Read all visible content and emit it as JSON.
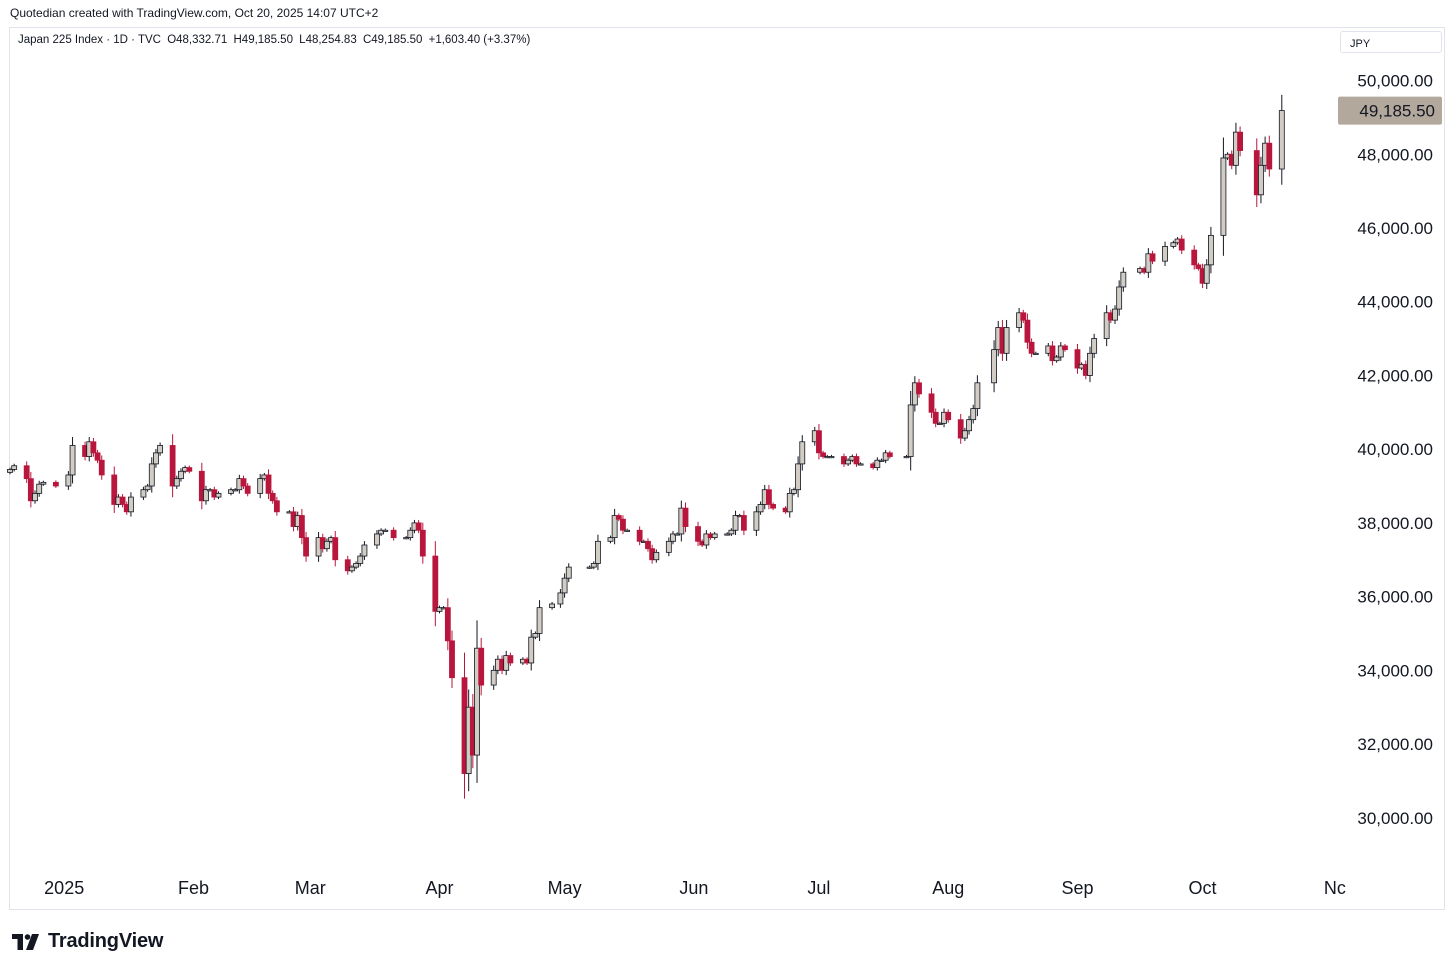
{
  "attribution": "Quotedian created with TradingView.com, Oct 20, 2025 14:07 UTC+2",
  "legend": {
    "symbol": "Japan 225 Index · 1D · TVC",
    "open": "O48,332.71",
    "high": "H49,185.50",
    "low": "L48,254.83",
    "close": "C49,185.50",
    "change": "+1,603.40 (+3.37%)"
  },
  "currency": "JPY",
  "last_price_label": "49,185.50",
  "brand": "TradingView",
  "colors": {
    "up": "#d1ccc4",
    "down": "#b8163c",
    "wick_up": "#131722",
    "wick_down": "#b8163c",
    "last_label_bg": "#b3a89c"
  },
  "chart_data": {
    "type": "candlestick",
    "title": "Japan 225 Index",
    "interval": "1D",
    "ylim": [
      28800,
      51100
    ],
    "y_ticks": [
      30000,
      32000,
      34000,
      36000,
      38000,
      40000,
      42000,
      44000,
      46000,
      48000,
      50000
    ],
    "y_tick_labels": [
      "30,000.00",
      "32,000.00",
      "34,000.00",
      "36,000.00",
      "38,000.00",
      "40,000.00",
      "42,000.00",
      "44,000.00",
      "46,000.00",
      "48,000.00",
      "50,000.00"
    ],
    "x_ticks": [
      {
        "label": "2025",
        "date": "2025-01-01"
      },
      {
        "label": "Feb",
        "date": "2025-02-01"
      },
      {
        "label": "Mar",
        "date": "2025-03-01"
      },
      {
        "label": "Apr",
        "date": "2025-04-01"
      },
      {
        "label": "May",
        "date": "2025-05-01"
      },
      {
        "label": "Jun",
        "date": "2025-06-01"
      },
      {
        "label": "Jul",
        "date": "2025-07-01"
      },
      {
        "label": "Aug",
        "date": "2025-08-01"
      },
      {
        "label": "Sep",
        "date": "2025-09-01"
      },
      {
        "label": "Oct",
        "date": "2025-10-01"
      },
      {
        "label": "Nc",
        "date": "2025-11-01"
      }
    ],
    "xlim": [
      "2024-12-19",
      "2025-11-02"
    ],
    "last_price": 49185.5,
    "closes": [
      [
        "2024-12-19",
        39450
      ],
      [
        "2024-12-20",
        39550
      ],
      [
        "2024-12-23",
        39200
      ],
      [
        "2024-12-24",
        38600
      ],
      [
        "2024-12-25",
        38800
      ],
      [
        "2024-12-26",
        39050
      ],
      [
        "2024-12-27",
        39100
      ],
      [
        "2024-12-30",
        39000
      ],
      [
        "2025-01-02",
        39300
      ],
      [
        "2025-01-03",
        40100
      ],
      [
        "2025-01-06",
        39800
      ],
      [
        "2025-01-07",
        40200
      ],
      [
        "2025-01-08",
        39900
      ],
      [
        "2025-01-09",
        39700
      ],
      [
        "2025-01-10",
        39300
      ],
      [
        "2025-01-13",
        38500
      ],
      [
        "2025-01-14",
        38700
      ],
      [
        "2025-01-15",
        38500
      ],
      [
        "2025-01-16",
        38300
      ],
      [
        "2025-01-17",
        38700
      ],
      [
        "2025-01-20",
        38900
      ],
      [
        "2025-01-21",
        39000
      ],
      [
        "2025-01-22",
        39600
      ],
      [
        "2025-01-23",
        39900
      ],
      [
        "2025-01-24",
        40100
      ],
      [
        "2025-01-27",
        39000
      ],
      [
        "2025-01-28",
        39200
      ],
      [
        "2025-01-29",
        39400
      ],
      [
        "2025-01-30",
        39500
      ],
      [
        "2025-01-31",
        39400
      ],
      [
        "2025-02-03",
        38600
      ],
      [
        "2025-02-04",
        38900
      ],
      [
        "2025-02-05",
        38900
      ],
      [
        "2025-02-06",
        38700
      ],
      [
        "2025-02-07",
        38800
      ],
      [
        "2025-02-10",
        38900
      ],
      [
        "2025-02-11",
        38900
      ],
      [
        "2025-02-12",
        39200
      ],
      [
        "2025-02-13",
        39000
      ],
      [
        "2025-02-14",
        38800
      ],
      [
        "2025-02-17",
        39200
      ],
      [
        "2025-02-18",
        39300
      ],
      [
        "2025-02-19",
        38800
      ],
      [
        "2025-02-20",
        38600
      ],
      [
        "2025-02-21",
        38300
      ],
      [
        "2025-02-24",
        38300
      ],
      [
        "2025-02-25",
        37900
      ],
      [
        "2025-02-26",
        38200
      ],
      [
        "2025-02-27",
        37600
      ],
      [
        "2025-02-28",
        37100
      ],
      [
        "2025-03-03",
        37600
      ],
      [
        "2025-03-04",
        37300
      ],
      [
        "2025-03-05",
        37500
      ],
      [
        "2025-03-06",
        37600
      ],
      [
        "2025-03-07",
        37000
      ],
      [
        "2025-03-10",
        36700
      ],
      [
        "2025-03-11",
        36800
      ],
      [
        "2025-03-12",
        36900
      ],
      [
        "2025-03-13",
        37100
      ],
      [
        "2025-03-14",
        37400
      ],
      [
        "2025-03-17",
        37700
      ],
      [
        "2025-03-18",
        37800
      ],
      [
        "2025-03-19",
        37800
      ],
      [
        "2025-03-21",
        37600
      ],
      [
        "2025-03-24",
        37600
      ],
      [
        "2025-03-25",
        37800
      ],
      [
        "2025-03-26",
        38000
      ],
      [
        "2025-03-27",
        37800
      ],
      [
        "2025-03-28",
        37100
      ],
      [
        "2025-03-31",
        35600
      ],
      [
        "2025-04-01",
        35700
      ],
      [
        "2025-04-02",
        35700
      ],
      [
        "2025-04-03",
        34800
      ],
      [
        "2025-04-04",
        33800
      ],
      [
        "2025-04-07",
        31200
      ],
      [
        "2025-04-08",
        33000
      ],
      [
        "2025-04-09",
        31700
      ],
      [
        "2025-04-10",
        34600
      ],
      [
        "2025-04-11",
        33600
      ],
      [
        "2025-04-14",
        34000
      ],
      [
        "2025-04-15",
        34300
      ],
      [
        "2025-04-16",
        34000
      ],
      [
        "2025-04-17",
        34400
      ],
      [
        "2025-04-18",
        34200
      ],
      [
        "2025-04-21",
        34300
      ],
      [
        "2025-04-22",
        34200
      ],
      [
        "2025-04-23",
        34900
      ],
      [
        "2025-04-24",
        35000
      ],
      [
        "2025-04-25",
        35700
      ],
      [
        "2025-04-28",
        35800
      ],
      [
        "2025-04-30",
        36100
      ],
      [
        "2025-05-01",
        36500
      ],
      [
        "2025-05-02",
        36800
      ],
      [
        "2025-05-07",
        36800
      ],
      [
        "2025-05-08",
        36900
      ],
      [
        "2025-05-09",
        37500
      ],
      [
        "2025-05-12",
        37600
      ],
      [
        "2025-05-13",
        38200
      ],
      [
        "2025-05-14",
        38100
      ],
      [
        "2025-05-15",
        37800
      ],
      [
        "2025-05-16",
        37800
      ],
      [
        "2025-05-19",
        37500
      ],
      [
        "2025-05-20",
        37500
      ],
      [
        "2025-05-21",
        37300
      ],
      [
        "2025-05-22",
        37000
      ],
      [
        "2025-05-23",
        37200
      ],
      [
        "2025-05-26",
        37500
      ],
      [
        "2025-05-27",
        37700
      ],
      [
        "2025-05-28",
        37700
      ],
      [
        "2025-05-29",
        38400
      ],
      [
        "2025-05-30",
        37900
      ],
      [
        "2025-06-02",
        37500
      ],
      [
        "2025-06-03",
        37400
      ],
      [
        "2025-06-04",
        37700
      ],
      [
        "2025-06-05",
        37600
      ],
      [
        "2025-06-06",
        37700
      ],
      [
        "2025-06-09",
        37700
      ],
      [
        "2025-06-10",
        37800
      ],
      [
        "2025-06-11",
        38200
      ],
      [
        "2025-06-12",
        38200
      ],
      [
        "2025-06-13",
        37800
      ],
      [
        "2025-06-16",
        38300
      ],
      [
        "2025-06-17",
        38500
      ],
      [
        "2025-06-18",
        38900
      ],
      [
        "2025-06-19",
        38500
      ],
      [
        "2025-06-20",
        38400
      ],
      [
        "2025-06-23",
        38300
      ],
      [
        "2025-06-24",
        38800
      ],
      [
        "2025-06-25",
        38900
      ],
      [
        "2025-06-26",
        39600
      ],
      [
        "2025-06-27",
        40200
      ],
      [
        "2025-06-30",
        40500
      ],
      [
        "2025-07-01",
        39900
      ],
      [
        "2025-07-02",
        39800
      ],
      [
        "2025-07-03",
        39800
      ],
      [
        "2025-07-04",
        39800
      ],
      [
        "2025-07-07",
        39600
      ],
      [
        "2025-07-08",
        39700
      ],
      [
        "2025-07-09",
        39800
      ],
      [
        "2025-07-10",
        39600
      ],
      [
        "2025-07-11",
        39600
      ],
      [
        "2025-07-14",
        39500
      ],
      [
        "2025-07-15",
        39700
      ],
      [
        "2025-07-16",
        39700
      ],
      [
        "2025-07-17",
        39900
      ],
      [
        "2025-07-18",
        39800
      ],
      [
        "2025-07-22",
        39800
      ],
      [
        "2025-07-23",
        41200
      ],
      [
        "2025-07-24",
        41800
      ],
      [
        "2025-07-25",
        41500
      ],
      [
        "2025-07-28",
        41000
      ],
      [
        "2025-07-29",
        40700
      ],
      [
        "2025-07-30",
        40700
      ],
      [
        "2025-07-31",
        41000
      ],
      [
        "2025-08-01",
        40800
      ],
      [
        "2025-08-04",
        40300
      ],
      [
        "2025-08-05",
        40500
      ],
      [
        "2025-08-06",
        40800
      ],
      [
        "2025-08-07",
        41100
      ],
      [
        "2025-08-08",
        41800
      ],
      [
        "2025-08-12",
        42700
      ],
      [
        "2025-08-13",
        43300
      ],
      [
        "2025-08-14",
        42600
      ],
      [
        "2025-08-15",
        43300
      ],
      [
        "2025-08-18",
        43700
      ],
      [
        "2025-08-19",
        43500
      ],
      [
        "2025-08-20",
        42900
      ],
      [
        "2025-08-21",
        42600
      ],
      [
        "2025-08-22",
        42600
      ],
      [
        "2025-08-25",
        42800
      ],
      [
        "2025-08-26",
        42400
      ],
      [
        "2025-08-27",
        42500
      ],
      [
        "2025-08-28",
        42800
      ],
      [
        "2025-08-29",
        42700
      ],
      [
        "2025-09-01",
        42200
      ],
      [
        "2025-09-02",
        42300
      ],
      [
        "2025-09-03",
        42000
      ],
      [
        "2025-09-04",
        42600
      ],
      [
        "2025-09-05",
        43000
      ],
      [
        "2025-09-08",
        43700
      ],
      [
        "2025-09-09",
        43500
      ],
      [
        "2025-09-10",
        43800
      ],
      [
        "2025-09-11",
        44400
      ],
      [
        "2025-09-12",
        44800
      ],
      [
        "2025-09-16",
        44900
      ],
      [
        "2025-09-17",
        44800
      ],
      [
        "2025-09-18",
        45300
      ],
      [
        "2025-09-19",
        45100
      ],
      [
        "2025-09-22",
        45500
      ],
      [
        "2025-09-24",
        45600
      ],
      [
        "2025-09-25",
        45700
      ],
      [
        "2025-09-26",
        45400
      ],
      [
        "2025-09-29",
        45000
      ],
      [
        "2025-09-30",
        44900
      ],
      [
        "2025-10-01",
        44500
      ],
      [
        "2025-10-02",
        45000
      ],
      [
        "2025-10-03",
        45800
      ],
      [
        "2025-10-06",
        47900
      ],
      [
        "2025-10-07",
        48000
      ],
      [
        "2025-10-08",
        47700
      ],
      [
        "2025-10-09",
        48600
      ],
      [
        "2025-10-10",
        48100
      ],
      [
        "2025-10-14",
        46900
      ],
      [
        "2025-10-15",
        47700
      ],
      [
        "2025-10-16",
        48300
      ],
      [
        "2025-10-17",
        47600
      ],
      [
        "2025-10-20",
        49185.5
      ]
    ]
  }
}
